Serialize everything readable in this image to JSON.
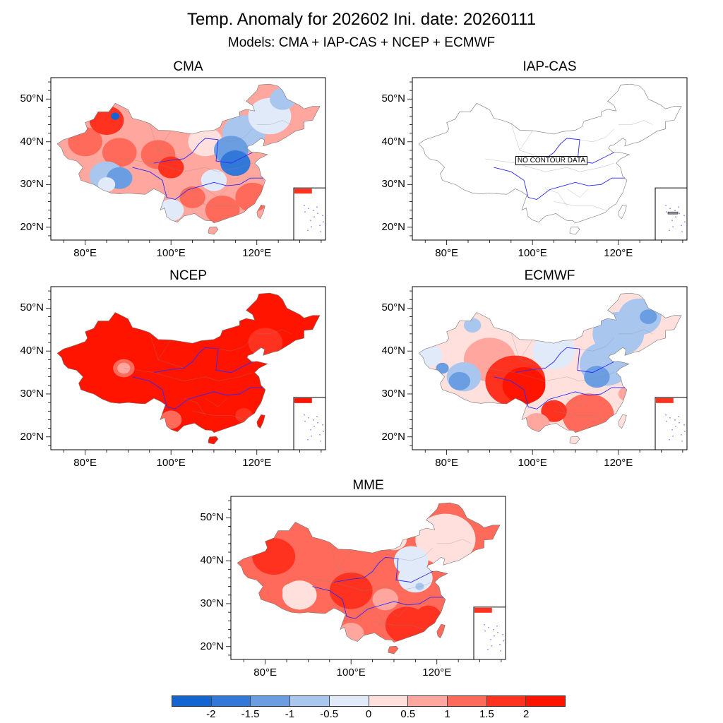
{
  "title": "Temp. Anomaly for 202602 Ini. date: 20260111",
  "subtitle": "Models: CMA + IAP-CAS + NCEP + ECMWF",
  "no_data_label": "NO CONTOUR DATA",
  "axes": {
    "lon_labels": [
      "80°E",
      "100°E",
      "120°E"
    ],
    "lat_labels": [
      "50°N",
      "40°N",
      "30°N",
      "20°N"
    ]
  },
  "chart_data": {
    "type": "heatmap",
    "variable": "Temperature anomaly",
    "lon_range": [
      72,
      136
    ],
    "lat_range": [
      17,
      55
    ],
    "colorbar": {
      "levels": [
        "-2",
        "-1.5",
        "-1",
        "-0.5",
        "0",
        "0.5",
        "1",
        "1.5",
        "2"
      ],
      "colors": [
        "#1464d2",
        "#3278d8",
        "#6a9de2",
        "#a9c6ee",
        "#e1eaf8",
        "#ffe0dc",
        "#ffa69e",
        "#ff6a5a",
        "#ff3220",
        "#ff1400"
      ]
    },
    "panels": [
      {
        "name": "CMA",
        "has_data": true,
        "base": 0.7,
        "regions": [
          [
            80,
            40,
            4,
            1.3
          ],
          [
            88,
            37.5,
            4,
            1.2
          ],
          [
            85,
            45,
            4,
            1.8
          ],
          [
            97,
            37,
            4,
            1.2
          ],
          [
            100,
            34,
            3,
            1.8
          ],
          [
            85,
            32,
            4,
            -0.7
          ],
          [
            88,
            31.5,
            3,
            -1.2
          ],
          [
            85,
            30,
            2,
            -0.4
          ],
          [
            108,
            40,
            4,
            0.3
          ],
          [
            117,
            42,
            5,
            -0.8
          ],
          [
            123,
            46,
            5,
            -0.5
          ],
          [
            126,
            50,
            3,
            -0.7
          ],
          [
            114,
            38,
            4,
            -1.2
          ],
          [
            115,
            35,
            3.5,
            -1.8
          ],
          [
            110,
            31,
            3,
            -0.5
          ],
          [
            119,
            27,
            4,
            1.3
          ],
          [
            112,
            24,
            4,
            1.1
          ],
          [
            105,
            27,
            3,
            1.0
          ],
          [
            100,
            24,
            3,
            -0.2
          ],
          [
            87,
            46,
            1,
            -2.2
          ]
        ]
      },
      {
        "name": "IAP-CAS",
        "has_data": false,
        "base": null,
        "regions": []
      },
      {
        "name": "NCEP",
        "has_data": true,
        "base": 2.2,
        "regions": [
          [
            89,
            36,
            2.5,
            1.3
          ],
          [
            89,
            36,
            1.5,
            0.7
          ],
          [
            100,
            24,
            2.5,
            1.2
          ],
          [
            122,
            42,
            4,
            1.7
          ],
          [
            117,
            25,
            2,
            1.7
          ]
        ]
      },
      {
        "name": "ECMWF",
        "has_data": true,
        "base": 0.3,
        "regions": [
          [
            90,
            38,
            6,
            0.8
          ],
          [
            96,
            33,
            7,
            1.6
          ],
          [
            98,
            32,
            5,
            2.1
          ],
          [
            84,
            34,
            4,
            -0.6
          ],
          [
            83,
            33,
            2.5,
            -1.3
          ],
          [
            79,
            36,
            1.5,
            -1.3
          ],
          [
            86,
            46,
            2,
            -0.6
          ],
          [
            76,
            39,
            3,
            -0.3
          ],
          [
            105,
            40,
            5,
            -0.3
          ],
          [
            120,
            44,
            6,
            -1
          ],
          [
            125,
            48,
            5,
            -0.8
          ],
          [
            127,
            48,
            2,
            -1.4
          ],
          [
            112,
            48,
            3,
            -0.9
          ],
          [
            117,
            37,
            6,
            -0.9
          ],
          [
            115,
            34,
            3,
            -1.3
          ],
          [
            113,
            25,
            6,
            1.2
          ],
          [
            105,
            26,
            3,
            1.6
          ],
          [
            101,
            23,
            3,
            0.8
          ],
          [
            122,
            30,
            2,
            0.5
          ]
        ]
      },
      {
        "name": "MME",
        "has_data": true,
        "base": 1.2,
        "regions": [
          [
            82,
            41,
            5,
            1.8
          ],
          [
            100,
            33,
            5,
            1.9
          ],
          [
            88,
            32,
            4,
            0.4
          ],
          [
            86,
            33,
            2,
            0.1
          ],
          [
            122,
            45,
            7,
            0.4
          ],
          [
            110,
            45,
            3,
            0.2
          ],
          [
            114,
            40,
            4,
            -0.3
          ],
          [
            115,
            36,
            4,
            -0.4
          ],
          [
            116,
            34,
            1,
            -0.8
          ],
          [
            113,
            25,
            5,
            1.7
          ],
          [
            118,
            27,
            3,
            1.6
          ],
          [
            100,
            23,
            3,
            0.9
          ],
          [
            108,
            31,
            3,
            0.7
          ]
        ]
      }
    ]
  }
}
